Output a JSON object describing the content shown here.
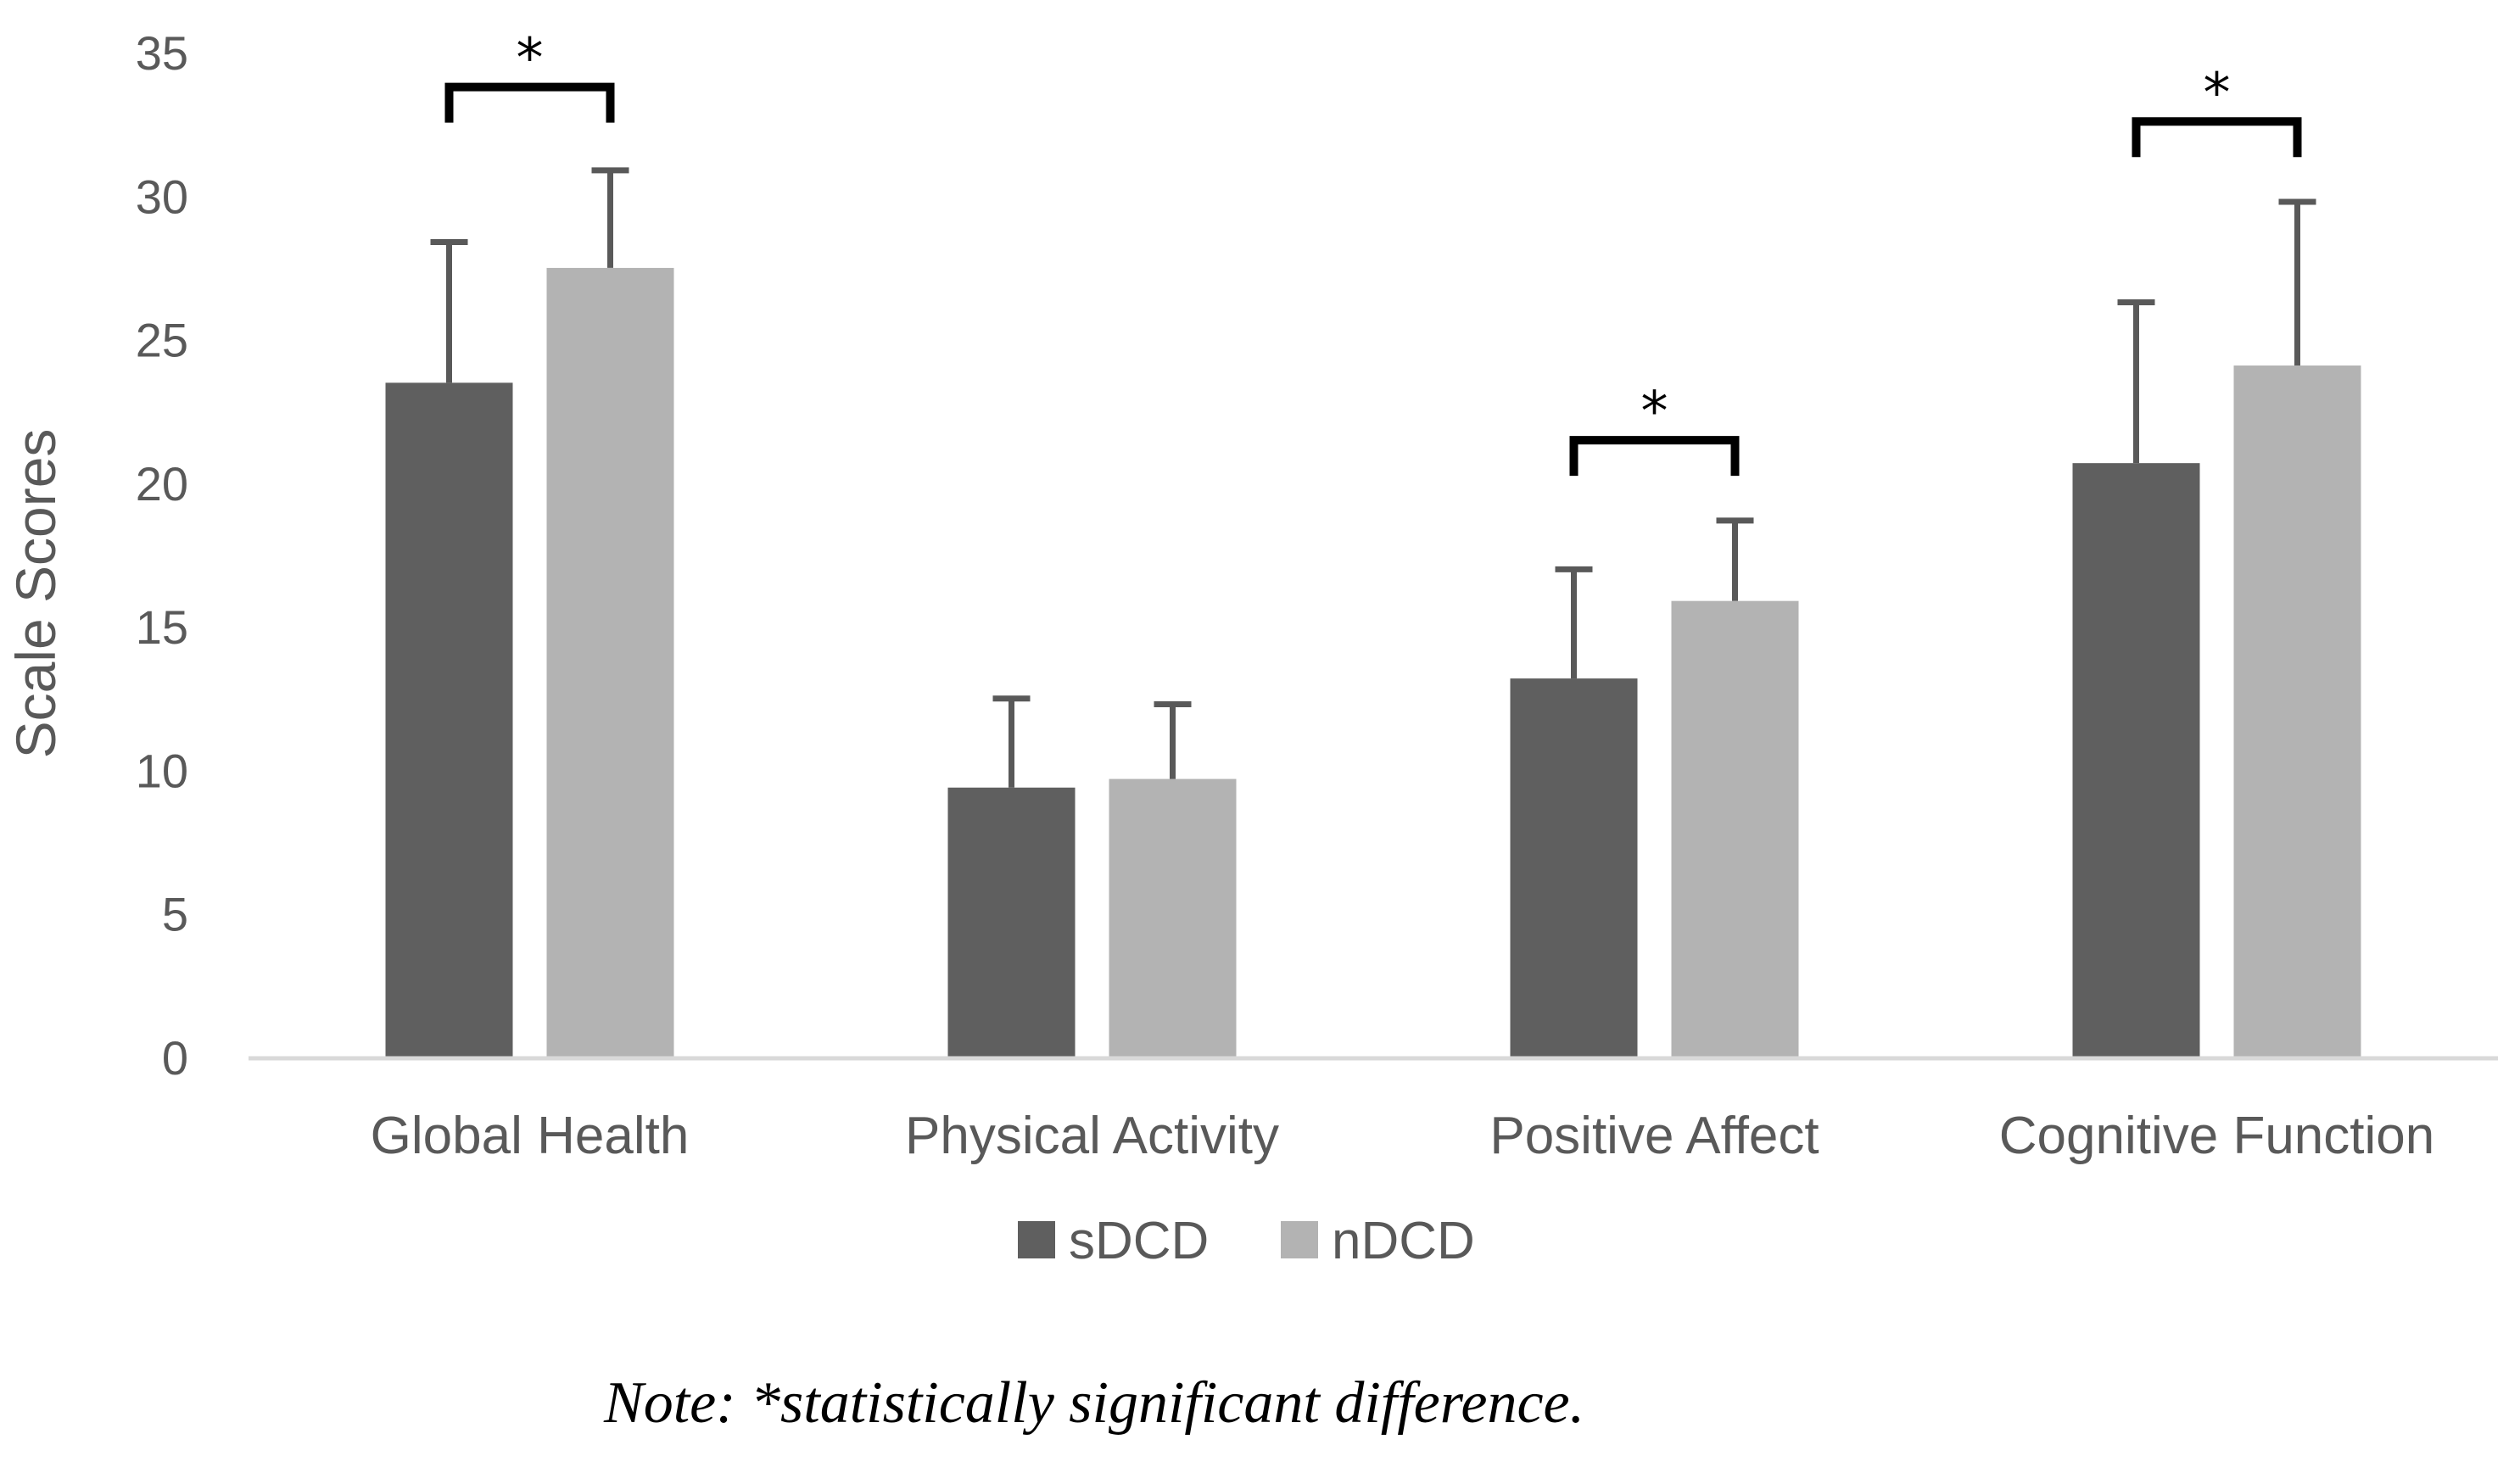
{
  "chart_data": {
    "type": "bar",
    "title": "",
    "xlabel": "",
    "ylabel": "Scale Scores",
    "ylim": [
      0,
      35
    ],
    "yticks": [
      0,
      5,
      10,
      15,
      20,
      25,
      30,
      35
    ],
    "grid": false,
    "legend_position": "bottom",
    "categories": [
      "Global Health",
      "Physical Activity",
      "Positive Affect",
      "Cognitive Function"
    ],
    "series": [
      {
        "name": "sDCD",
        "color": "#5f5f5f",
        "values": [
          23.5,
          9.4,
          13.2,
          20.7
        ],
        "error_upper": [
          4.9,
          3.1,
          3.8,
          5.6
        ]
      },
      {
        "name": "nDCD",
        "color": "#b3b3b3",
        "values": [
          27.5,
          9.7,
          15.9,
          24.1
        ],
        "error_upper": [
          3.4,
          2.6,
          2.8,
          5.7
        ]
      }
    ],
    "significance": [
      {
        "category": "Global Health",
        "label": "*",
        "bracket_y": 33.8
      },
      {
        "category": "Positive Affect",
        "label": "*",
        "bracket_y": 21.5
      },
      {
        "category": "Cognitive Function",
        "label": "*",
        "bracket_y": 32.6
      }
    ]
  },
  "note": "Note: *statistically significant difference."
}
